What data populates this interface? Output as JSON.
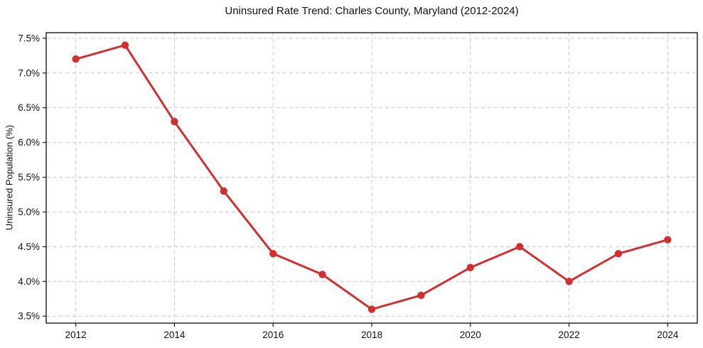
{
  "figure": {
    "title": "Uninsured Rate Trend: Charles County, Maryland (2012-2024)",
    "ylabel": "Uninsured Population (%)"
  },
  "chart_data": {
    "type": "line",
    "title": "Uninsured Rate Trend: Charles County, Maryland (2012-2024)",
    "xlabel": "",
    "ylabel": "Uninsured Population (%)",
    "x": [
      2012,
      2013,
      2014,
      2015,
      2016,
      2017,
      2018,
      2019,
      2020,
      2021,
      2022,
      2023,
      2024
    ],
    "series": [
      {
        "name": "Uninsured Rate",
        "values": [
          7.2,
          7.4,
          6.3,
          5.3,
          4.4,
          4.1,
          3.6,
          3.8,
          4.2,
          4.5,
          4.0,
          4.4,
          4.6
        ]
      }
    ],
    "xlim": [
      2011.4,
      2024.6
    ],
    "ylim": [
      3.4,
      7.58
    ],
    "xticks": [
      2012,
      2014,
      2016,
      2018,
      2020,
      2022,
      2024
    ],
    "xtick_labels": [
      "2012",
      "2014",
      "2016",
      "2018",
      "2020",
      "2022",
      "2024"
    ],
    "yticks": [
      3.5,
      4.0,
      4.5,
      5.0,
      5.5,
      6.0,
      6.5,
      7.0,
      7.5
    ],
    "ytick_labels": [
      "3.5%",
      "4.0%",
      "4.5%",
      "5.0%",
      "5.5%",
      "6.0%",
      "6.5%",
      "7.0%",
      "7.5%"
    ],
    "grid": true,
    "grid_style": "dashed",
    "legend": "none",
    "colors": {
      "line": "#d32f2f",
      "marker": "#d32f2f",
      "grid": "#cccccc",
      "spine": "#1a1a1a",
      "background": "#ffffff"
    }
  }
}
